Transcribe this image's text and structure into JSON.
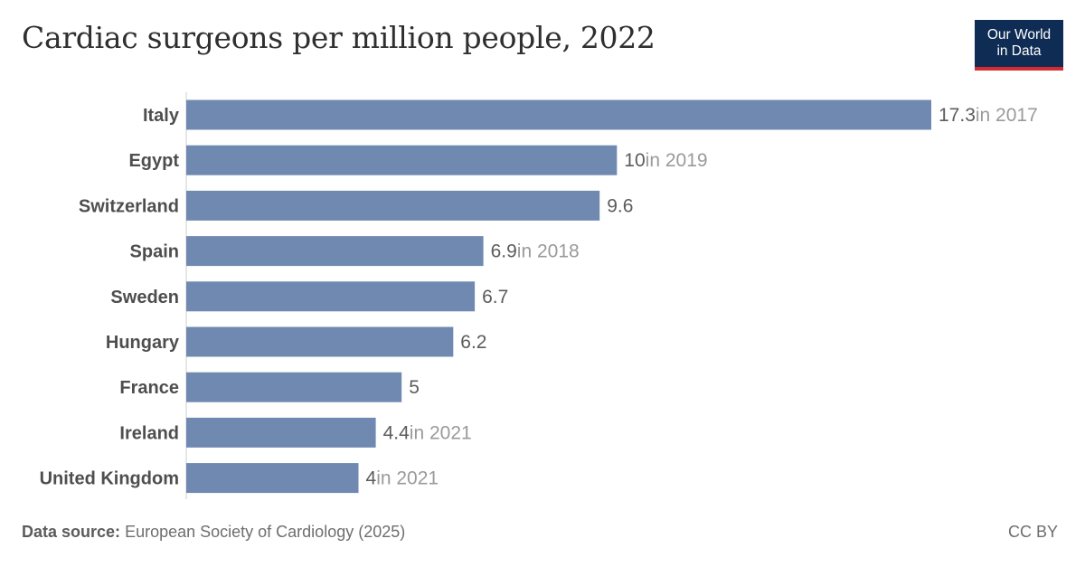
{
  "chart_data": {
    "type": "bar",
    "orientation": "horizontal",
    "title": "Cardiac surgeons per million people, 2022",
    "categories": [
      "Italy",
      "Egypt",
      "Switzerland",
      "Spain",
      "Sweden",
      "Hungary",
      "France",
      "Ireland",
      "United Kingdom"
    ],
    "values": [
      17.3,
      10,
      9.6,
      6.9,
      6.7,
      6.2,
      5,
      4.4,
      4
    ],
    "value_labels": [
      "17.3",
      "10",
      "9.6",
      "6.9",
      "6.7",
      "6.2",
      "5",
      "4.4",
      "4"
    ],
    "year_notes": [
      "in 2017",
      "in 2019",
      "",
      "in 2018",
      "",
      "",
      "",
      "in 2021",
      "in 2021"
    ],
    "xlim": [
      0,
      17.3
    ],
    "bar_color": "#6f89b1",
    "grid": false
  },
  "logo": {
    "line1": "Our World",
    "line2": "in Data",
    "bg_color": "#0f2c54",
    "accent_color": "#d42b32"
  },
  "footer": {
    "source_label": "Data source:",
    "source_text": "European Society of Cardiology (2025)",
    "license": "CC BY"
  }
}
